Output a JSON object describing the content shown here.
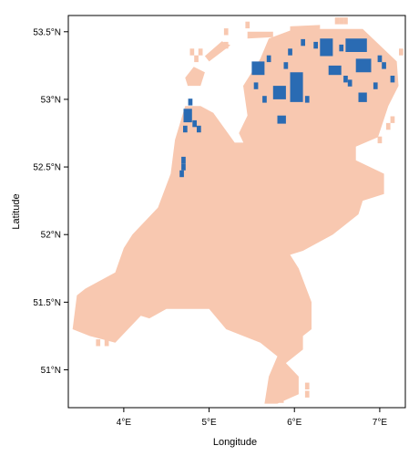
{
  "chart_data": {
    "type": "heatmap",
    "title": "",
    "xlabel": "Longitude",
    "ylabel": "Latitude",
    "xlim": [
      3.35,
      7.3
    ],
    "ylim": [
      50.72,
      53.62
    ],
    "x_ticks": [
      {
        "value": 4,
        "label": "4°E"
      },
      {
        "value": 5,
        "label": "5°E"
      },
      {
        "value": 6,
        "label": "6°E"
      },
      {
        "value": 7,
        "label": "7°E"
      }
    ],
    "y_ticks": [
      {
        "value": 51,
        "label": "51°N"
      },
      {
        "value": 51.5,
        "label": "51.5°N"
      },
      {
        "value": 52,
        "label": "52°N"
      },
      {
        "value": 52.5,
        "label": "52.5°N"
      },
      {
        "value": 53,
        "label": "53°N"
      },
      {
        "value": 53.5,
        "label": "53.5°N"
      }
    ],
    "grid": false,
    "legend": "none",
    "colors": {
      "land": "#F8C8B0",
      "highlight": "#2A6BB3",
      "frame": "#000000",
      "background": "#FFFFFF"
    },
    "regions": [
      {
        "class": "land",
        "polygon": [
          [
            6.0,
            53.52
          ],
          [
            6.8,
            53.52
          ],
          [
            7.2,
            53.28
          ],
          [
            7.22,
            53.1
          ],
          [
            7.1,
            52.95
          ],
          [
            6.98,
            52.72
          ],
          [
            6.72,
            52.65
          ],
          [
            6.72,
            52.55
          ],
          [
            7.05,
            52.45
          ],
          [
            7.05,
            52.3
          ],
          [
            6.8,
            52.25
          ],
          [
            6.75,
            52.15
          ],
          [
            6.45,
            52.0
          ],
          [
            6.1,
            51.88
          ],
          [
            5.95,
            51.85
          ],
          [
            6.05,
            51.75
          ],
          [
            6.2,
            51.5
          ],
          [
            6.2,
            51.3
          ],
          [
            6.1,
            51.25
          ],
          [
            6.1,
            51.15
          ],
          [
            5.9,
            51.05
          ],
          [
            6.05,
            50.95
          ],
          [
            6.05,
            50.82
          ],
          [
            5.8,
            50.75
          ],
          [
            5.65,
            50.75
          ],
          [
            5.7,
            50.95
          ],
          [
            5.8,
            51.1
          ],
          [
            5.6,
            51.2
          ],
          [
            5.2,
            51.3
          ],
          [
            5.0,
            51.45
          ],
          [
            4.5,
            51.45
          ],
          [
            4.3,
            51.38
          ],
          [
            4.2,
            51.4
          ],
          [
            3.9,
            51.2
          ],
          [
            3.6,
            51.25
          ],
          [
            3.4,
            51.3
          ],
          [
            3.45,
            51.55
          ],
          [
            3.55,
            51.6
          ],
          [
            3.9,
            51.72
          ],
          [
            4.0,
            51.9
          ],
          [
            4.1,
            52.0
          ],
          [
            4.4,
            52.2
          ],
          [
            4.55,
            52.45
          ],
          [
            4.6,
            52.7
          ],
          [
            4.72,
            52.95
          ],
          [
            4.9,
            52.95
          ],
          [
            5.05,
            52.9
          ],
          [
            5.3,
            52.68
          ],
          [
            5.55,
            52.68
          ],
          [
            5.9,
            52.52
          ],
          [
            5.75,
            52.4
          ],
          [
            5.55,
            52.35
          ],
          [
            5.15,
            52.38
          ],
          [
            5.05,
            52.42
          ],
          [
            5.5,
            52.55
          ],
          [
            5.35,
            52.75
          ],
          [
            5.45,
            52.88
          ],
          [
            5.4,
            53.1
          ],
          [
            5.6,
            53.3
          ],
          [
            5.7,
            53.45
          ]
        ]
      },
      {
        "class": "land",
        "polygon": [
          [
            4.75,
            53.1
          ],
          [
            4.9,
            53.1
          ],
          [
            4.95,
            53.2
          ],
          [
            4.82,
            53.24
          ],
          [
            4.72,
            53.16
          ]
        ]
      },
      {
        "class": "land",
        "polygon": [
          [
            5.0,
            53.28
          ],
          [
            5.25,
            53.4
          ],
          [
            5.15,
            53.43
          ],
          [
            4.95,
            53.32
          ]
        ]
      },
      {
        "class": "land",
        "polygon": [
          [
            5.45,
            53.45
          ],
          [
            5.75,
            53.46
          ],
          [
            5.75,
            53.5
          ],
          [
            5.45,
            53.5
          ]
        ]
      },
      {
        "class": "land",
        "polygon": [
          [
            5.95,
            53.5
          ],
          [
            6.3,
            53.52
          ],
          [
            6.3,
            53.55
          ],
          [
            5.95,
            53.54
          ]
        ]
      },
      {
        "class": "highlight",
        "polygon": [
          [
            6.6,
            53.45
          ],
          [
            6.85,
            53.45
          ],
          [
            6.85,
            53.35
          ],
          [
            6.6,
            53.35
          ]
        ]
      },
      {
        "class": "highlight",
        "polygon": [
          [
            6.72,
            53.3
          ],
          [
            6.9,
            53.3
          ],
          [
            6.9,
            53.2
          ],
          [
            6.72,
            53.2
          ]
        ]
      },
      {
        "class": "highlight",
        "polygon": [
          [
            6.3,
            53.45
          ],
          [
            6.45,
            53.45
          ],
          [
            6.45,
            53.32
          ],
          [
            6.3,
            53.32
          ]
        ]
      },
      {
        "class": "highlight",
        "polygon": [
          [
            5.95,
            53.2
          ],
          [
            6.1,
            53.2
          ],
          [
            6.1,
            52.98
          ],
          [
            5.95,
            52.98
          ]
        ]
      },
      {
        "class": "highlight",
        "polygon": [
          [
            5.75,
            53.1
          ],
          [
            5.9,
            53.1
          ],
          [
            5.9,
            53.0
          ],
          [
            5.75,
            53.0
          ]
        ]
      },
      {
        "class": "highlight",
        "polygon": [
          [
            5.5,
            53.28
          ],
          [
            5.65,
            53.28
          ],
          [
            5.65,
            53.18
          ],
          [
            5.5,
            53.18
          ]
        ]
      },
      {
        "class": "highlight",
        "polygon": [
          [
            6.4,
            53.25
          ],
          [
            6.55,
            53.25
          ],
          [
            6.55,
            53.18
          ],
          [
            6.4,
            53.18
          ]
        ]
      },
      {
        "class": "highlight",
        "polygon": [
          [
            6.75,
            53.05
          ],
          [
            6.85,
            53.05
          ],
          [
            6.85,
            52.98
          ],
          [
            6.75,
            52.98
          ]
        ]
      },
      {
        "class": "highlight",
        "polygon": [
          [
            4.7,
            52.93
          ],
          [
            4.8,
            52.93
          ],
          [
            4.8,
            52.83
          ],
          [
            4.7,
            52.83
          ]
        ]
      },
      {
        "class": "highlight",
        "polygon": [
          [
            5.8,
            52.88
          ],
          [
            5.9,
            52.88
          ],
          [
            5.9,
            52.82
          ],
          [
            5.8,
            52.82
          ]
        ]
      }
    ],
    "cells": [
      {
        "class": "highlight",
        "x": 6.1,
        "y": 53.42
      },
      {
        "class": "highlight",
        "x": 6.25,
        "y": 53.4
      },
      {
        "class": "highlight",
        "x": 5.95,
        "y": 53.35
      },
      {
        "class": "highlight",
        "x": 6.55,
        "y": 53.38
      },
      {
        "class": "highlight",
        "x": 7.0,
        "y": 53.3
      },
      {
        "class": "highlight",
        "x": 7.05,
        "y": 53.25
      },
      {
        "class": "highlight",
        "x": 6.6,
        "y": 53.15
      },
      {
        "class": "highlight",
        "x": 6.65,
        "y": 53.12
      },
      {
        "class": "highlight",
        "x": 6.95,
        "y": 53.1
      },
      {
        "class": "highlight",
        "x": 7.15,
        "y": 53.15
      },
      {
        "class": "highlight",
        "x": 5.7,
        "y": 53.3
      },
      {
        "class": "highlight",
        "x": 5.55,
        "y": 53.1
      },
      {
        "class": "highlight",
        "x": 5.65,
        "y": 53.0
      },
      {
        "class": "highlight",
        "x": 6.15,
        "y": 53.0
      },
      {
        "class": "highlight",
        "x": 5.9,
        "y": 53.25
      },
      {
        "class": "highlight",
        "x": 4.78,
        "y": 52.98
      },
      {
        "class": "highlight",
        "x": 4.83,
        "y": 52.82
      },
      {
        "class": "highlight",
        "x": 4.72,
        "y": 52.78
      },
      {
        "class": "highlight",
        "x": 4.88,
        "y": 52.78
      },
      {
        "class": "highlight",
        "x": 4.7,
        "y": 52.55
      },
      {
        "class": "highlight",
        "x": 4.7,
        "y": 52.5
      },
      {
        "class": "highlight",
        "x": 4.68,
        "y": 52.45
      },
      {
        "class": "land",
        "x": 4.8,
        "y": 53.35
      },
      {
        "class": "land",
        "x": 4.85,
        "y": 53.3
      },
      {
        "class": "land",
        "x": 4.9,
        "y": 53.35
      },
      {
        "class": "land",
        "x": 5.2,
        "y": 53.5
      },
      {
        "class": "land",
        "x": 5.45,
        "y": 53.55
      },
      {
        "class": "land",
        "x": 5.2,
        "y": 53.4
      },
      {
        "class": "land",
        "x": 6.5,
        "y": 53.58
      },
      {
        "class": "land",
        "x": 6.55,
        "y": 53.58
      },
      {
        "class": "land",
        "x": 6.6,
        "y": 53.58
      },
      {
        "class": "land",
        "x": 3.6,
        "y": 51.48
      },
      {
        "class": "land",
        "x": 3.75,
        "y": 51.45
      },
      {
        "class": "land",
        "x": 4.15,
        "y": 51.62
      },
      {
        "class": "land",
        "x": 4.3,
        "y": 51.5
      },
      {
        "class": "land",
        "x": 3.7,
        "y": 51.2
      },
      {
        "class": "land",
        "x": 3.8,
        "y": 51.2
      },
      {
        "class": "land",
        "x": 5.75,
        "y": 50.78
      },
      {
        "class": "land",
        "x": 5.85,
        "y": 50.78
      },
      {
        "class": "land",
        "x": 6.15,
        "y": 50.88
      },
      {
        "class": "land",
        "x": 6.15,
        "y": 50.82
      },
      {
        "class": "land",
        "x": 7.1,
        "y": 52.8
      },
      {
        "class": "land",
        "x": 7.15,
        "y": 52.85
      },
      {
        "class": "land",
        "x": 7.0,
        "y": 52.7
      },
      {
        "class": "land",
        "x": 7.25,
        "y": 53.35
      }
    ]
  }
}
